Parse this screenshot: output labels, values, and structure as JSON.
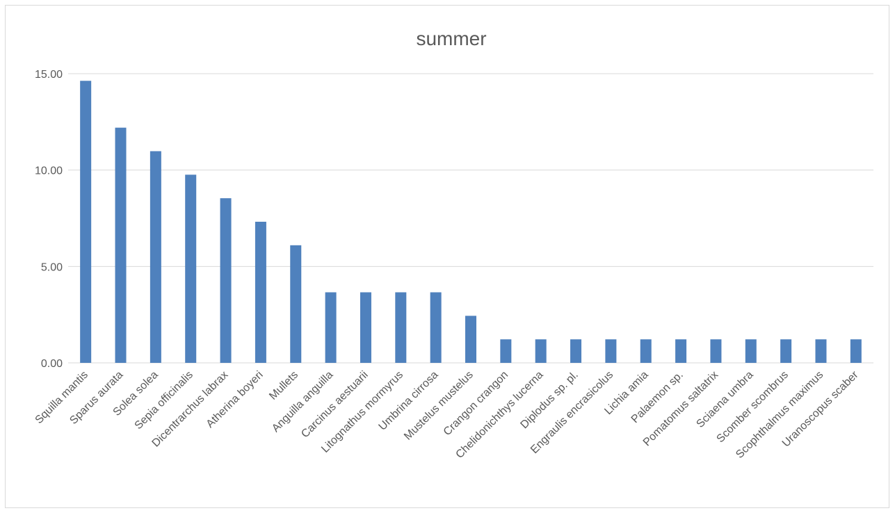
{
  "chart_data": {
    "type": "bar",
    "title": "summer",
    "xlabel": "",
    "ylabel": "",
    "ylim": [
      0,
      15
    ],
    "yticks": [
      "0.00",
      "5.00",
      "10.00",
      "15.00"
    ],
    "grid": true,
    "legend": "none",
    "bar_color": "#4f81bd",
    "categories": [
      "Squilla mantis",
      "Sparus aurata",
      "Solea solea",
      "Sepia officinalis",
      "Dicentrarchus labrax",
      "Atherina boyeri",
      "Mullets",
      "Anguilla anguilla",
      "Carcinus aestuarii",
      "Litognathus mormyrus",
      "Umbrina cirrosa",
      "Mustelus mustelus",
      "Crangon crangon",
      "Chelidonichthys lucerna",
      "Diplodus sp. pl.",
      "Engraulis encrasicolus",
      "Lichia amia",
      "Palaemon sp.",
      "Pomatomus saltatrix",
      "Sciaena umbra",
      "Scomber scombrus",
      "Scophthalmus maximus",
      "Uranoscopus scaber"
    ],
    "values": [
      14.63,
      12.2,
      10.98,
      9.76,
      8.54,
      7.32,
      6.1,
      3.66,
      3.66,
      3.66,
      3.66,
      2.44,
      1.22,
      1.22,
      1.22,
      1.22,
      1.22,
      1.22,
      1.22,
      1.22,
      1.22,
      1.22,
      1.22
    ]
  }
}
